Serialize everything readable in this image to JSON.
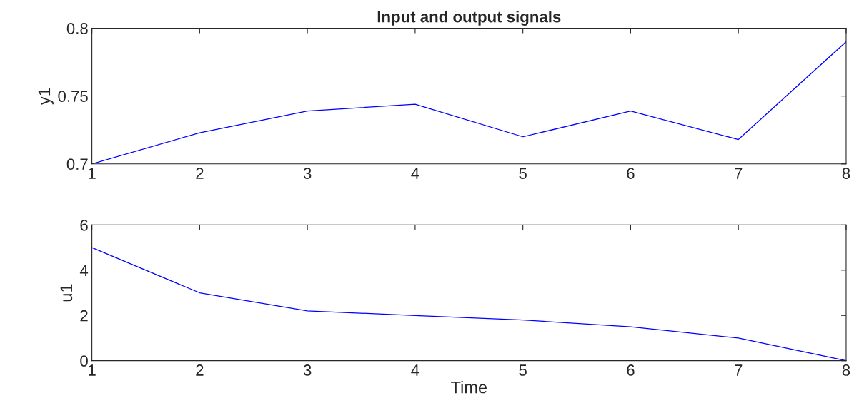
{
  "chart_data": [
    {
      "type": "line",
      "title": "Input and output signals",
      "ylabel": "y1",
      "x": [
        1,
        2,
        3,
        4,
        5,
        6,
        7,
        8
      ],
      "series": [
        {
          "color": "#0000ff",
          "values": [
            0.7,
            0.723,
            0.739,
            0.744,
            0.72,
            0.739,
            0.718,
            0.79
          ]
        }
      ],
      "xlim": [
        1,
        8
      ],
      "xticks": [
        1,
        2,
        3,
        4,
        5,
        6,
        7,
        8
      ],
      "ylim": [
        0.7,
        0.8
      ],
      "yticks": [
        0.7,
        0.75,
        0.8
      ]
    },
    {
      "type": "line",
      "xlabel": "Time",
      "ylabel": "u1",
      "x": [
        1,
        2,
        3,
        4,
        5,
        6,
        7,
        8
      ],
      "series": [
        {
          "color": "#0000ff",
          "values": [
            5,
            3,
            2.2,
            2.0,
            1.8,
            1.5,
            1.0,
            0
          ]
        }
      ],
      "xlim": [
        1,
        8
      ],
      "xticks": [
        1,
        2,
        3,
        4,
        5,
        6,
        7,
        8
      ],
      "ylim": [
        0,
        6
      ],
      "yticks": [
        0,
        2,
        4,
        6
      ]
    }
  ]
}
